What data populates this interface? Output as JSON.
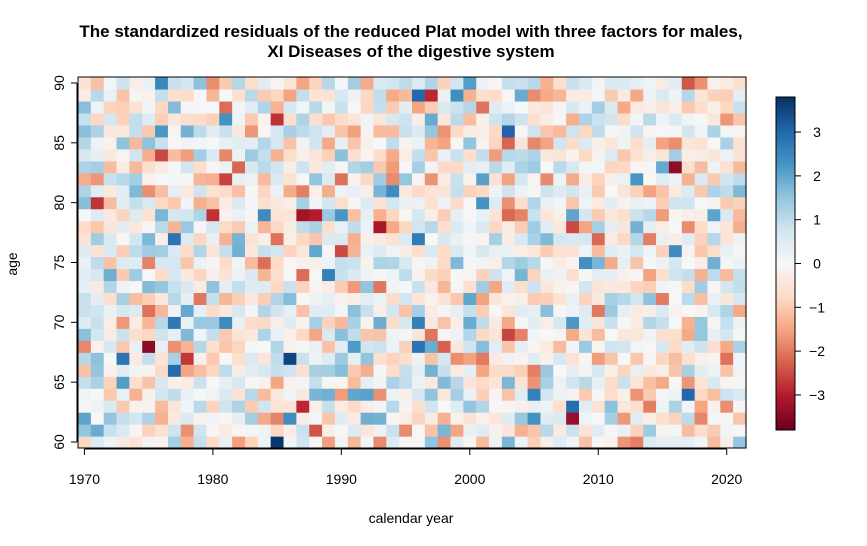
{
  "chart_data": {
    "type": "heatmap",
    "title": [
      "The standardized residuals of the reduced Plat model with three factors for males,",
      "XI Diseases of the digestive system"
    ],
    "xlabel": "calendar year",
    "ylabel": "age",
    "x_start": 1970,
    "x_end": 2021,
    "y_start": 60,
    "y_end": 90,
    "x_ticks": [
      1970,
      1980,
      1990,
      2000,
      2010,
      2020
    ],
    "y_ticks": [
      60,
      65,
      70,
      75,
      80,
      85,
      90
    ],
    "colorbar_ticks": [
      -3,
      -2,
      -1,
      0,
      1,
      2,
      3
    ],
    "value_range": [
      -3.8,
      3.8
    ],
    "colormap": [
      "#67001f",
      "#b2182b",
      "#d6604d",
      "#f4a582",
      "#fddbc7",
      "#f7f7f7",
      "#d1e5f0",
      "#92c5de",
      "#4393c3",
      "#2166ac",
      "#053061"
    ],
    "grid": false,
    "legend": "right colorbar",
    "values_note": "",
    "notable_cells": [
      {
        "year": 1985,
        "age": 60,
        "value": 3.7
      },
      {
        "year": 1986,
        "age": 67,
        "value": 3.5
      },
      {
        "year": 1973,
        "age": 67,
        "value": 2.8
      },
      {
        "year": 2017,
        "age": 64,
        "value": 3.0
      },
      {
        "year": 2008,
        "age": 63,
        "value": 2.9
      },
      {
        "year": 2008,
        "age": 62,
        "value": -3.3
      },
      {
        "year": 1987,
        "age": 79,
        "value": -3.2
      },
      {
        "year": 1988,
        "age": 79,
        "value": -3.0
      },
      {
        "year": 1993,
        "age": 78,
        "value": -3.1
      },
      {
        "year": 2016,
        "age": 83,
        "value": -3.4
      },
      {
        "year": 1969,
        "age": 83,
        "value": -2.9
      },
      {
        "year": 1978,
        "age": 67,
        "value": -2.7
      }
    ]
  }
}
